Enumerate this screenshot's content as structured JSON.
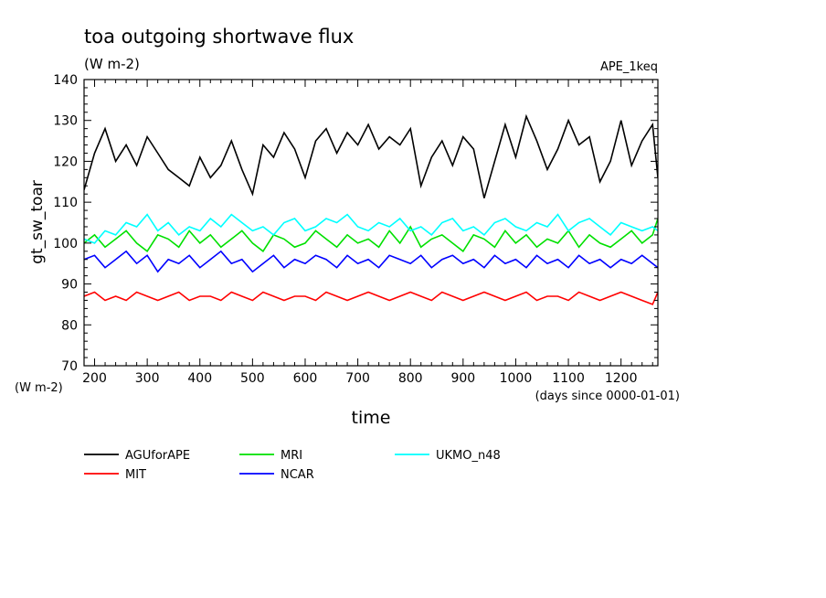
{
  "chart_data": {
    "type": "line",
    "title": "toa outgoing shortwave flux",
    "subtitle": "(W m-2)",
    "annotation": "APE_1keq",
    "xlabel": "time",
    "xunits": "(days since 0000-01-01)",
    "ylabel": "gt_sw_toar",
    "yunits": "(W m-2)",
    "xlim": [
      180,
      1270
    ],
    "ylim": [
      70,
      140
    ],
    "xticks": [
      200,
      300,
      400,
      500,
      600,
      700,
      800,
      900,
      1000,
      1100,
      1200
    ],
    "yticks": [
      70,
      80,
      90,
      100,
      110,
      120,
      130,
      140
    ],
    "grid": false,
    "legend_position": "bottom",
    "series": [
      {
        "name": "AGUforAPE",
        "color": "#000000",
        "x": [
          180,
          200,
          220,
          240,
          260,
          280,
          300,
          320,
          340,
          360,
          380,
          400,
          420,
          440,
          460,
          480,
          500,
          520,
          540,
          560,
          580,
          600,
          620,
          640,
          660,
          680,
          700,
          720,
          740,
          760,
          780,
          800,
          820,
          840,
          860,
          880,
          900,
          920,
          940,
          960,
          980,
          1000,
          1020,
          1040,
          1060,
          1080,
          1100,
          1120,
          1140,
          1160,
          1180,
          1200,
          1220,
          1240,
          1260,
          1270
        ],
        "y": [
          113,
          122,
          128,
          120,
          124,
          119,
          126,
          122,
          118,
          116,
          114,
          121,
          116,
          119,
          125,
          118,
          112,
          124,
          121,
          127,
          123,
          116,
          125,
          128,
          122,
          127,
          124,
          129,
          123,
          126,
          124,
          128,
          114,
          121,
          125,
          119,
          126,
          123,
          111,
          120,
          129,
          121,
          131,
          125,
          118,
          123,
          130,
          124,
          126,
          115,
          120,
          130,
          119,
          125,
          129,
          116
        ]
      },
      {
        "name": "MIT",
        "color": "#ff0000",
        "x": [
          180,
          200,
          220,
          240,
          260,
          280,
          300,
          320,
          340,
          360,
          380,
          400,
          420,
          440,
          460,
          480,
          500,
          520,
          540,
          560,
          580,
          600,
          620,
          640,
          660,
          680,
          700,
          720,
          740,
          760,
          780,
          800,
          820,
          840,
          860,
          880,
          900,
          920,
          940,
          960,
          980,
          1000,
          1020,
          1040,
          1060,
          1080,
          1100,
          1120,
          1140,
          1160,
          1180,
          1200,
          1220,
          1240,
          1260,
          1270
        ],
        "y": [
          87,
          88,
          86,
          87,
          86,
          88,
          87,
          86,
          87,
          88,
          86,
          87,
          87,
          86,
          88,
          87,
          86,
          88,
          87,
          86,
          87,
          87,
          86,
          88,
          87,
          86,
          87,
          88,
          87,
          86,
          87,
          88,
          87,
          86,
          88,
          87,
          86,
          87,
          88,
          87,
          86,
          87,
          88,
          86,
          87,
          87,
          86,
          88,
          87,
          86,
          87,
          88,
          87,
          86,
          85,
          88
        ]
      },
      {
        "name": "MRI",
        "color": "#00e000",
        "x": [
          180,
          200,
          220,
          240,
          260,
          280,
          300,
          320,
          340,
          360,
          380,
          400,
          420,
          440,
          460,
          480,
          500,
          520,
          540,
          560,
          580,
          600,
          620,
          640,
          660,
          680,
          700,
          720,
          740,
          760,
          780,
          800,
          820,
          840,
          860,
          880,
          900,
          920,
          940,
          960,
          980,
          1000,
          1020,
          1040,
          1060,
          1080,
          1100,
          1120,
          1140,
          1160,
          1180,
          1200,
          1220,
          1240,
          1260,
          1270
        ],
        "y": [
          100,
          102,
          99,
          101,
          103,
          100,
          98,
          102,
          101,
          99,
          103,
          100,
          102,
          99,
          101,
          103,
          100,
          98,
          102,
          101,
          99,
          100,
          103,
          101,
          99,
          102,
          100,
          101,
          99,
          103,
          100,
          104,
          99,
          101,
          102,
          100,
          98,
          102,
          101,
          99,
          103,
          100,
          102,
          99,
          101,
          100,
          103,
          99,
          102,
          100,
          99,
          101,
          103,
          100,
          102,
          106
        ]
      },
      {
        "name": "NCAR",
        "color": "#0000ff",
        "x": [
          180,
          200,
          220,
          240,
          260,
          280,
          300,
          320,
          340,
          360,
          380,
          400,
          420,
          440,
          460,
          480,
          500,
          520,
          540,
          560,
          580,
          600,
          620,
          640,
          660,
          680,
          700,
          720,
          740,
          760,
          780,
          800,
          820,
          840,
          860,
          880,
          900,
          920,
          940,
          960,
          980,
          1000,
          1020,
          1040,
          1060,
          1080,
          1100,
          1120,
          1140,
          1160,
          1180,
          1200,
          1220,
          1240,
          1260,
          1270
        ],
        "y": [
          96,
          97,
          94,
          96,
          98,
          95,
          97,
          93,
          96,
          95,
          97,
          94,
          96,
          98,
          95,
          96,
          93,
          95,
          97,
          94,
          96,
          95,
          97,
          96,
          94,
          97,
          95,
          96,
          94,
          97,
          96,
          95,
          97,
          94,
          96,
          97,
          95,
          96,
          94,
          97,
          95,
          96,
          94,
          97,
          95,
          96,
          94,
          97,
          95,
          96,
          94,
          96,
          95,
          97,
          95,
          94
        ]
      },
      {
        "name": "UKMO_n48",
        "color": "#00ffff",
        "x": [
          180,
          200,
          220,
          240,
          260,
          280,
          300,
          320,
          340,
          360,
          380,
          400,
          420,
          440,
          460,
          480,
          500,
          520,
          540,
          560,
          580,
          600,
          620,
          640,
          660,
          680,
          700,
          720,
          740,
          760,
          780,
          800,
          820,
          840,
          860,
          880,
          900,
          920,
          940,
          960,
          980,
          1000,
          1020,
          1040,
          1060,
          1080,
          1100,
          1120,
          1140,
          1160,
          1180,
          1200,
          1220,
          1240,
          1260,
          1270
        ],
        "y": [
          101,
          100,
          103,
          102,
          105,
          104,
          107,
          103,
          105,
          102,
          104,
          103,
          106,
          104,
          107,
          105,
          103,
          104,
          102,
          105,
          106,
          103,
          104,
          106,
          105,
          107,
          104,
          103,
          105,
          104,
          106,
          103,
          104,
          102,
          105,
          106,
          103,
          104,
          102,
          105,
          106,
          104,
          103,
          105,
          104,
          107,
          103,
          105,
          106,
          104,
          102,
          105,
          104,
          103,
          104,
          103
        ]
      }
    ]
  }
}
